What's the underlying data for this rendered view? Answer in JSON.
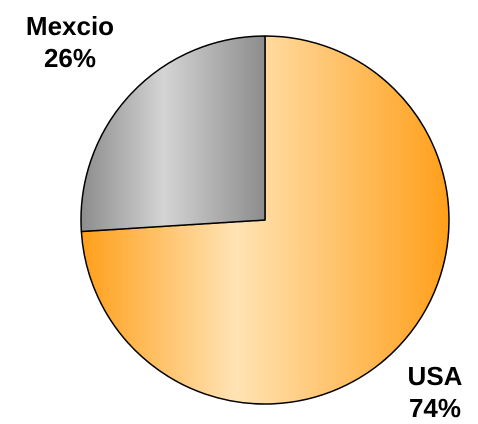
{
  "chart_data": {
    "type": "pie",
    "slices": [
      {
        "label": "USA",
        "value": 74,
        "percent_label": "74%",
        "color": "#ff9f1a",
        "color_light": "#ffe3b4"
      },
      {
        "label": "Mexcio",
        "value": 26,
        "percent_label": "26%",
        "color": "#8c8c8c",
        "color_light": "#d4d4d4"
      }
    ],
    "start": "12 o'clock",
    "direction": "clockwise",
    "slice_outline": "#000000"
  }
}
